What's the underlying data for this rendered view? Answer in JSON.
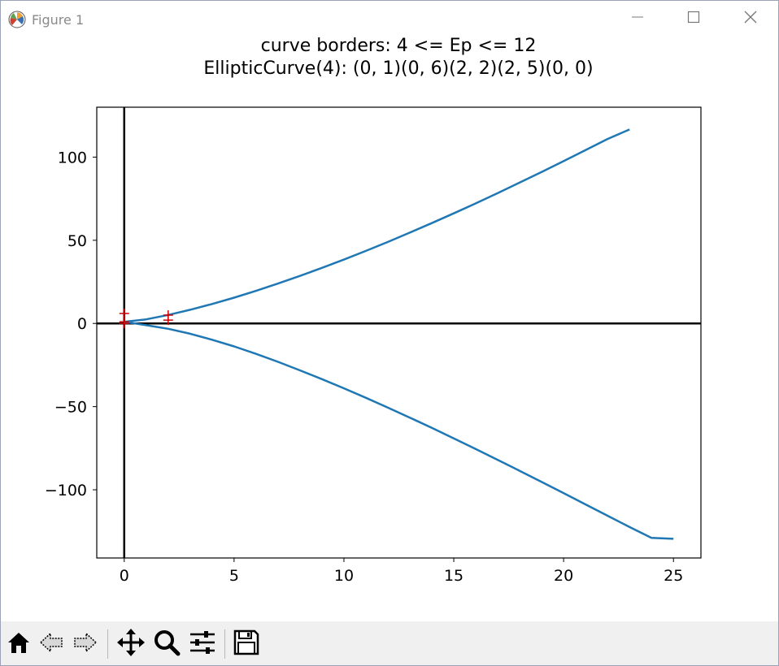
{
  "window": {
    "title": "Figure 1",
    "controls": [
      "minimize",
      "maximize",
      "close"
    ]
  },
  "chart_data": {
    "type": "line",
    "title_lines": [
      "curve borders:  4 <= Ep <= 12",
      "EllipticCurve(4): (0, 1)(0, 6)(2, 2)(2, 5)(0, 0)"
    ],
    "xlabel": "",
    "ylabel": "",
    "xlim": [
      -1.25,
      26.25
    ],
    "ylim": [
      -141,
      130
    ],
    "xticks": [
      0,
      5,
      10,
      15,
      20,
      25
    ],
    "xtick_labels": [
      "0",
      "5",
      "10",
      "15",
      "20",
      "25"
    ],
    "yticks": [
      -100,
      -50,
      0,
      50,
      100
    ],
    "ytick_labels": [
      "−100",
      "−50",
      "0",
      "50",
      "100"
    ],
    "grid": false,
    "axis_lines": {
      "x": 0,
      "y": 0,
      "color": "#000000"
    },
    "series": [
      {
        "color": "#1f77b4",
        "x": [
          0,
          1,
          2,
          3,
          4,
          5,
          6,
          7,
          8,
          9,
          10,
          11,
          12,
          13,
          14,
          15,
          16,
          17,
          18,
          19,
          20,
          21,
          22,
          23
        ],
        "y": [
          1,
          2.45,
          5.1,
          8.2,
          11.7,
          15.5,
          19.6,
          24.0,
          28.6,
          33.4,
          38.4,
          43.6,
          49.0,
          54.6,
          60.3,
          66.2,
          72.2,
          78.4,
          84.7,
          91.1,
          97.6,
          104.2,
          110.9,
          116.6
        ]
      },
      {
        "color": "#1f77b4",
        "x": [
          0,
          1,
          2,
          3,
          4,
          5,
          6,
          7,
          8,
          9,
          10,
          11,
          12,
          13,
          14,
          15,
          16,
          17,
          18,
          19,
          20,
          21,
          22,
          23,
          24,
          25
        ],
        "y": [
          1,
          -1.05,
          -3.2,
          -6.2,
          -9.8,
          -13.8,
          -18.3,
          -23.1,
          -28.2,
          -33.5,
          -39.0,
          -44.7,
          -50.6,
          -56.6,
          -62.8,
          -69.1,
          -75.5,
          -82.0,
          -88.6,
          -95.3,
          -102.0,
          -108.8,
          -115.6,
          -122.4,
          -128.9,
          -129.5
        ]
      }
    ],
    "markers": {
      "symbol": "+",
      "color": "#cc0000",
      "points": [
        [
          0,
          1
        ],
        [
          0,
          6
        ],
        [
          2,
          2
        ],
        [
          2,
          5
        ],
        [
          0,
          0
        ]
      ]
    }
  },
  "toolbar": {
    "buttons": [
      "home-icon",
      "back-icon",
      "forward-icon",
      "pan-icon",
      "zoom-icon",
      "configure-subplots-icon",
      "save-icon"
    ]
  }
}
